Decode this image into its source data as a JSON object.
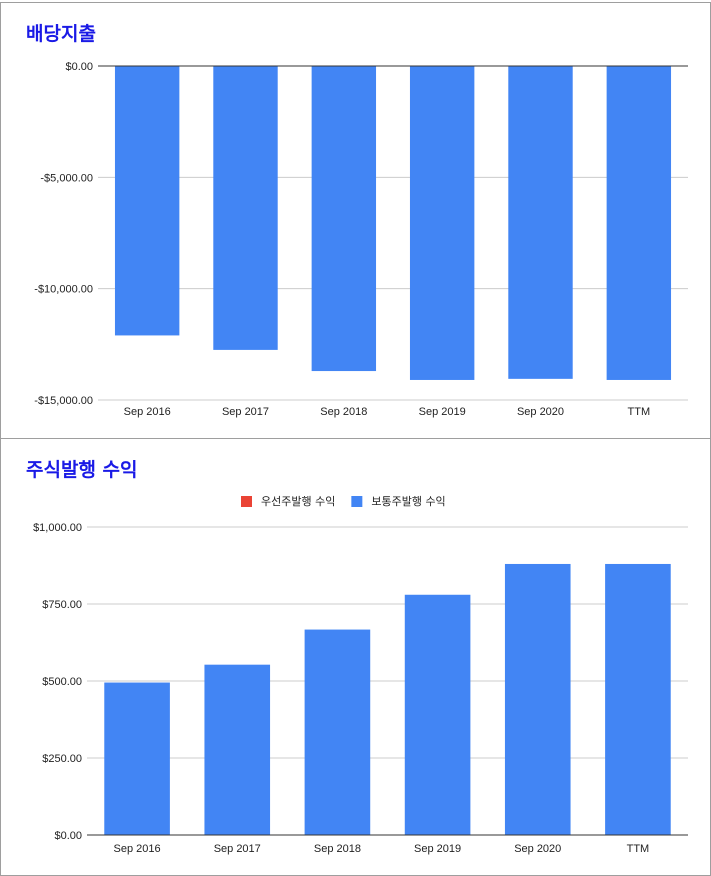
{
  "chart_data": [
    {
      "type": "bar",
      "title": "배당지출",
      "categories": [
        "Sep 2016",
        "Sep 2017",
        "Sep 2018",
        "Sep 2019",
        "Sep 2020",
        "TTM"
      ],
      "series": [
        {
          "values": [
            -12100,
            -12750,
            -13700,
            -14100,
            -14050,
            -14100
          ],
          "color": "#4285f4"
        }
      ],
      "ylim": [
        -15000,
        0
      ],
      "yticks": [
        0,
        -5000,
        -10000,
        -15000
      ],
      "ytick_labels": [
        "$0.00",
        "-$5,000.00",
        "-$10,000.00",
        "-$15,000.00"
      ],
      "grid": true,
      "legend": null
    },
    {
      "type": "bar",
      "title": "주식발행 수익",
      "categories": [
        "Sep 2016",
        "Sep 2017",
        "Sep 2018",
        "Sep 2019",
        "Sep 2020",
        "TTM"
      ],
      "series": [
        {
          "name": "우선주발행 수익",
          "values": [
            0,
            0,
            0,
            0,
            0,
            0
          ],
          "color": "#ea4335"
        },
        {
          "name": "보통주발행 수익",
          "values": [
            495,
            553,
            667,
            780,
            880,
            880
          ],
          "color": "#4285f4"
        }
      ],
      "ylim": [
        0,
        1000
      ],
      "yticks": [
        1000,
        750,
        500,
        250,
        0
      ],
      "ytick_labels": [
        "$1,000.00",
        "$750.00",
        "$500.00",
        "$250.00",
        "$0.00"
      ],
      "grid": true,
      "legend": "top-center"
    }
  ]
}
